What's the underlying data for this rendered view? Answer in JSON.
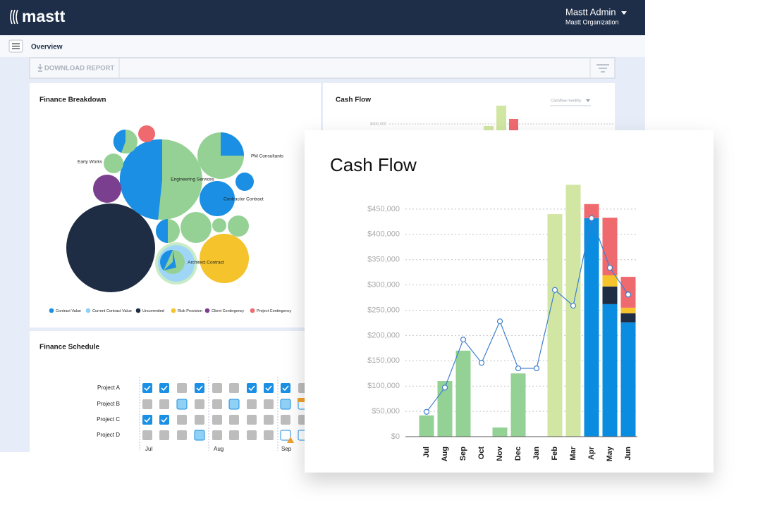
{
  "header": {
    "logo": "mastt",
    "user_name": "Mastt Admin",
    "organization": "Mastt Organization"
  },
  "subnav": {
    "title": "Overview"
  },
  "toolbar": {
    "download": "DOWNLOAD REPORT"
  },
  "finance_breakdown": {
    "title": "Finance Breakdown",
    "labels": [
      "Early Works",
      "Engineering Services",
      "PM Consultants",
      "Contractor Contract",
      "Architect Contract"
    ],
    "legend": [
      {
        "label": "Contract Value",
        "color": "#1a8fe3"
      },
      {
        "label": "Current Contract Value",
        "color": "#8fd0f5"
      },
      {
        "label": "Uncommited",
        "color": "#1f2d44"
      },
      {
        "label": "Risk Provision",
        "color": "#f5c32c"
      },
      {
        "label": "Client Contingency",
        "color": "#7a3f8f"
      },
      {
        "label": "Project Contingency",
        "color": "#ef6a6f"
      }
    ]
  },
  "cash_flow_preview": {
    "title": "Cash Flow",
    "dropdown": "Cashflow monthly",
    "tick": "$400,000"
  },
  "finance_schedule": {
    "title": "Finance Schedule",
    "projects": [
      "Project A",
      "Project B",
      "Project C",
      "Project D"
    ],
    "months": [
      "Jul",
      "Aug",
      "Sep"
    ]
  },
  "chart_data": {
    "type": "bar",
    "title": "Cash Flow",
    "categories": [
      "Jul",
      "Aug",
      "Sep",
      "Oct",
      "Nov",
      "Dec",
      "Jan",
      "Feb",
      "Mar",
      "Apr",
      "May",
      "Jun"
    ],
    "stacked": true,
    "series": [
      {
        "color": "#94d194",
        "values": [
          42000,
          110000,
          170000,
          null,
          18000,
          125000,
          null,
          null,
          null,
          null,
          null,
          null
        ]
      },
      {
        "color": "#d2e6a3",
        "values": [
          null,
          null,
          null,
          null,
          null,
          null,
          null,
          440000,
          498000,
          null,
          null,
          null
        ]
      },
      {
        "color": "#0a8ce0",
        "values": [
          null,
          null,
          null,
          null,
          null,
          null,
          null,
          null,
          null,
          432000,
          262000,
          226000
        ]
      },
      {
        "color": "#1f2d44",
        "values": [
          null,
          null,
          null,
          null,
          null,
          null,
          null,
          null,
          null,
          null,
          35000,
          18000
        ]
      },
      {
        "color": "#f5c32c",
        "values": [
          null,
          null,
          null,
          null,
          null,
          null,
          null,
          null,
          null,
          null,
          22000,
          11000
        ]
      },
      {
        "color": "#ef6a6f",
        "values": [
          null,
          null,
          null,
          null,
          null,
          null,
          null,
          null,
          null,
          28000,
          114000,
          61000
        ]
      },
      {
        "type": "line",
        "color": "#3d7fcf",
        "values": [
          49000,
          97000,
          192000,
          146000,
          228000,
          135000,
          135000,
          290000,
          259000,
          432000,
          334000,
          281000
        ]
      }
    ],
    "ylim": [
      0,
      500000
    ],
    "yticks": [
      {
        "value": 0,
        "label": "$0"
      },
      {
        "value": 50000,
        "label": "$50,000"
      },
      {
        "value": 100000,
        "label": "$100,000"
      },
      {
        "value": 150000,
        "label": "$150,000"
      },
      {
        "value": 200000,
        "label": "$200,000"
      },
      {
        "value": 250000,
        "label": "$250,000"
      },
      {
        "value": 300000,
        "label": "$300,000"
      },
      {
        "value": 350000,
        "label": "$350,000"
      },
      {
        "value": 400000,
        "label": "$400,000"
      },
      {
        "value": 450000,
        "label": "$450,000"
      }
    ],
    "grid": true
  }
}
